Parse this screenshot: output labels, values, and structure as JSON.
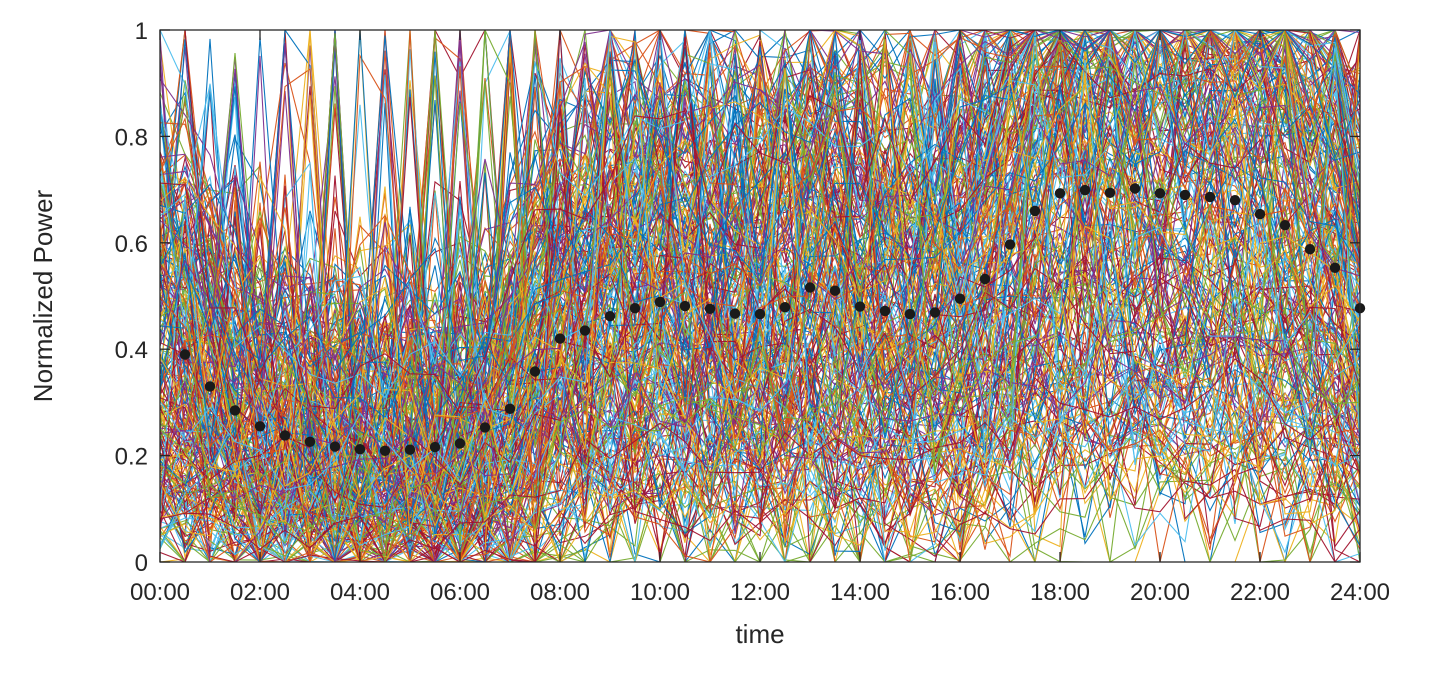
{
  "chart_data": {
    "type": "line",
    "title": "",
    "xlabel": "time",
    "ylabel": "Normalized Power",
    "x_ticks": [
      "00:00",
      "02:00",
      "04:00",
      "06:00",
      "08:00",
      "10:00",
      "12:00",
      "14:00",
      "16:00",
      "18:00",
      "20:00",
      "22:00",
      "24:00"
    ],
    "y_ticks": [
      "0",
      "0.2",
      "0.4",
      "0.6",
      "0.8",
      "1"
    ],
    "xlim_hours": [
      0,
      24
    ],
    "ylim": [
      0,
      1
    ],
    "grid": false,
    "line_colors": [
      "#0072bd",
      "#d95319",
      "#edb120",
      "#7e2f8e",
      "#77ac30",
      "#4dbeee",
      "#a2142f"
    ],
    "mean_series": {
      "marker_color": "#1a1a1a",
      "x_hours": [
        0.5,
        1,
        1.5,
        2,
        2.5,
        3,
        3.5,
        4,
        4.5,
        5,
        5.5,
        6,
        6.5,
        7,
        7.5,
        8,
        8.5,
        9,
        9.5,
        10,
        10.5,
        11,
        11.5,
        12,
        12.5,
        13,
        13.5,
        14,
        14.5,
        15,
        15.5,
        16,
        16.5,
        17,
        17.5,
        18,
        18.5,
        19,
        19.5,
        20,
        20.5,
        21,
        21.5,
        22,
        22.5,
        23,
        23.5,
        24
      ],
      "values": [
        0.39,
        0.33,
        0.285,
        0.255,
        0.238,
        0.226,
        0.217,
        0.212,
        0.209,
        0.211,
        0.216,
        0.223,
        0.253,
        0.288,
        0.358,
        0.42,
        0.435,
        0.462,
        0.477,
        0.489,
        0.481,
        0.476,
        0.467,
        0.466,
        0.479,
        0.516,
        0.51,
        0.48,
        0.472,
        0.466,
        0.469,
        0.495,
        0.532,
        0.597,
        0.66,
        0.693,
        0.699,
        0.694,
        0.702,
        0.693,
        0.69,
        0.686,
        0.68,
        0.654,
        0.633,
        0.588,
        0.553,
        0.477
      ]
    }
  }
}
